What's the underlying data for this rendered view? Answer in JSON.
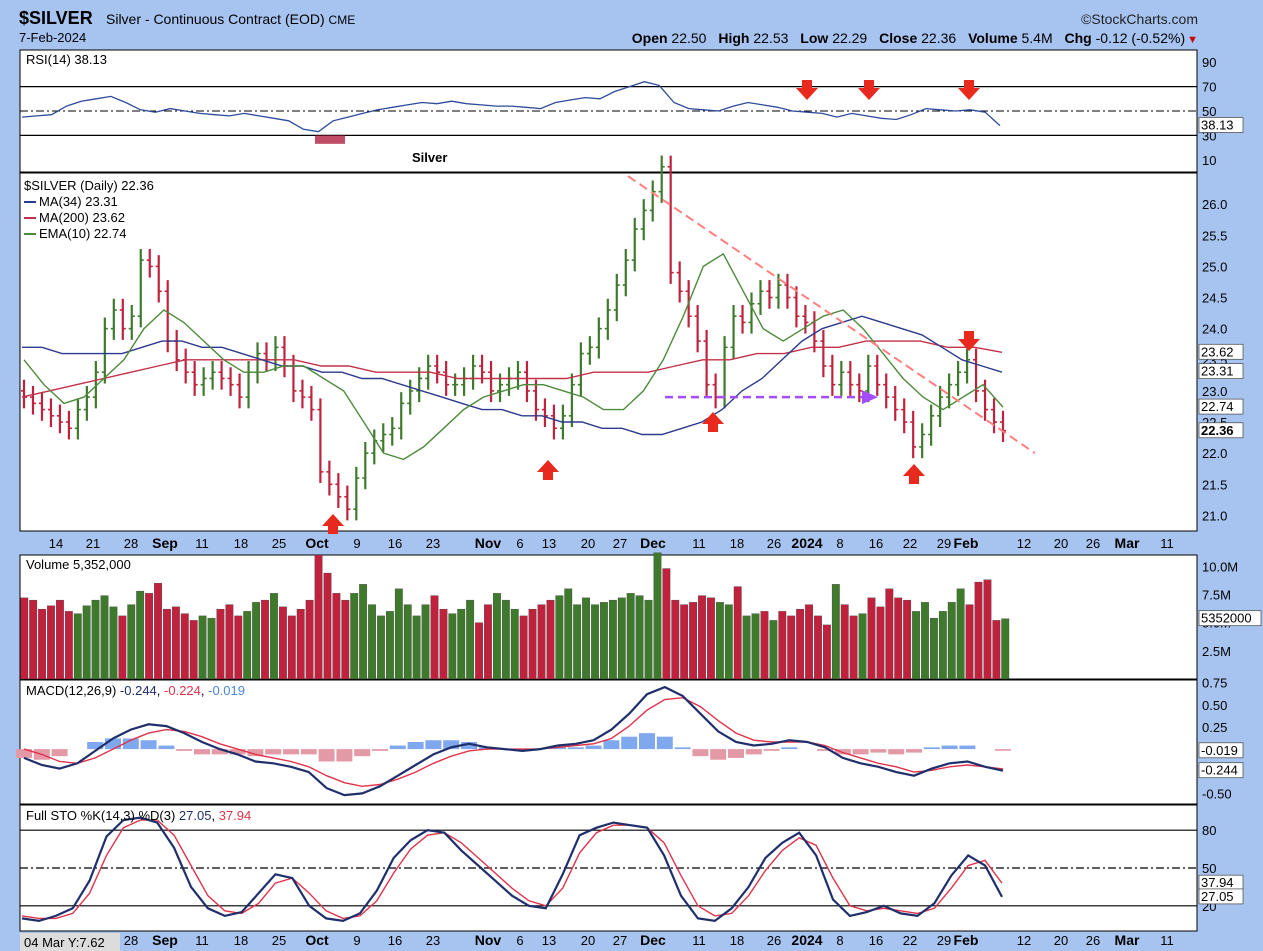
{
  "header": {
    "symbol": "$SILVER",
    "description": "Silver - Continuous Contract (EOD)",
    "exchange": "CME",
    "provider": "©StockCharts.com",
    "date": "7-Feb-2024",
    "open_label": "Open",
    "open": "22.50",
    "high_label": "High",
    "high": "22.53",
    "low_label": "Low",
    "low": "22.29",
    "close_label": "Close",
    "close": "22.36",
    "volume_label": "Volume",
    "volume": "5.4M",
    "chg_label": "Chg",
    "chg": "-0.12 (-0.52%)"
  },
  "annotation": "Silver",
  "footer_label": "04 Mar Y:7.62",
  "colors": {
    "background": "#a7c4f1",
    "panel": "#ffffff",
    "up_bar": "#3f7a2c",
    "down_bar": "#c0223e",
    "ma34": "#2b3a8c",
    "ma200": "#c4304a",
    "ema10": "#4e8a3c",
    "trendline": "#ff7f7f",
    "support_arrow": "#a34dff",
    "arrow": "#e82a1e",
    "macd_hist_pos": "#7fa8ef",
    "macd_hist_neg": "#e49aa6"
  },
  "chart_data": [
    {
      "type": "line",
      "title": "RSI(14) 38.13",
      "series": [
        {
          "name": "RSI(14)",
          "last": 38.13,
          "values": [
            45,
            46,
            47,
            54,
            58,
            60,
            62,
            57,
            51,
            49,
            52,
            50,
            48,
            47,
            46,
            48,
            46,
            44,
            42,
            35,
            33,
            42,
            45,
            48,
            51,
            53,
            55,
            57,
            56,
            58,
            56,
            55,
            54,
            54,
            53,
            52,
            57,
            59,
            61,
            60,
            66,
            70,
            74,
            71,
            57,
            52,
            51,
            50,
            54,
            57,
            55,
            53,
            50,
            49,
            48,
            45,
            48,
            46,
            44,
            43,
            47,
            52,
            51,
            50,
            51,
            49,
            38
          ]
        }
      ],
      "ylim": [
        0,
        100
      ],
      "y_ticks": [
        "90",
        "70",
        "50",
        "30",
        "10"
      ],
      "reference_lines": [
        70,
        50,
        30
      ]
    },
    {
      "type": "bar",
      "title": "$SILVER (Daily) 22.36",
      "legend": [
        "MA(34) 23.31",
        "MA(200) 23.62",
        "EMA(10) 22.74"
      ],
      "ylim": [
        20.75,
        26.5
      ],
      "y_ticks": [
        "26.0",
        "25.5",
        "25.0",
        "24.5",
        "24.0",
        "23.5",
        "23.0",
        "22.5",
        "22.0",
        "21.5",
        "21.0"
      ],
      "x_ticks": [
        "14",
        "21",
        "28",
        "Sep",
        "11",
        "18",
        "25",
        "Oct",
        "9",
        "16",
        "23",
        "Nov",
        "6",
        "13",
        "20",
        "27",
        "Dec",
        "11",
        "18",
        "26",
        "2024",
        "8",
        "16",
        "22",
        "29",
        "Feb",
        "12",
        "20",
        "26",
        "Mar",
        "11"
      ],
      "right_labels": {
        "ma200": "23.62",
        "ma34": "23.31",
        "ema10": "22.74",
        "close": "22.36"
      },
      "close": [
        22.9,
        22.8,
        22.7,
        22.6,
        22.5,
        22.4,
        22.7,
        22.9,
        23.3,
        24.0,
        24.3,
        24.0,
        24.2,
        25.1,
        25.0,
        24.6,
        23.8,
        23.5,
        23.3,
        23.1,
        23.2,
        23.3,
        23.2,
        23.1,
        22.9,
        23.3,
        23.6,
        23.5,
        23.7,
        23.4,
        23.0,
        22.9,
        22.7,
        21.7,
        21.5,
        21.3,
        21.1,
        21.6,
        22.0,
        22.2,
        22.3,
        22.4,
        22.8,
        23.0,
        23.2,
        23.4,
        23.3,
        23.1,
        23.1,
        23.2,
        23.4,
        23.3,
        23.0,
        23.1,
        23.2,
        23.3,
        23.0,
        22.7,
        22.6,
        22.4,
        22.6,
        23.1,
        23.6,
        23.7,
        24.0,
        24.3,
        24.7,
        25.1,
        25.6,
        25.9,
        26.2,
        26.6,
        24.9,
        24.6,
        24.2,
        23.8,
        23.1,
        22.9,
        23.7,
        24.2,
        24.1,
        24.4,
        24.6,
        24.5,
        24.7,
        24.5,
        24.2,
        24.1,
        23.8,
        23.4,
        23.1,
        23.3,
        23.1,
        23.0,
        23.4,
        23.1,
        22.9,
        22.7,
        22.5,
        22.1,
        22.3,
        22.6,
        22.9,
        23.1,
        23.3,
        23.5,
        23.0,
        22.7,
        22.5,
        22.36
      ],
      "ma34": [
        23.7,
        23.7,
        23.6,
        23.6,
        23.6,
        23.6,
        23.7,
        23.8,
        23.8,
        23.7,
        23.7,
        23.6,
        23.5,
        23.4,
        23.4,
        23.3,
        23.3,
        23.2,
        23.2,
        23.1,
        23.0,
        22.9,
        22.8,
        22.7,
        22.7,
        22.6,
        22.6,
        22.5,
        22.5,
        22.4,
        22.4,
        22.3,
        22.3,
        22.4,
        22.5,
        22.7,
        23.0,
        23.2,
        23.5,
        23.8,
        24.0,
        24.1,
        24.2,
        24.1,
        24.0,
        23.9,
        23.7,
        23.5,
        23.4,
        23.3
      ],
      "ma200": [
        22.9,
        23.0,
        23.1,
        23.2,
        23.3,
        23.4,
        23.5,
        23.5,
        23.5,
        23.5,
        23.5,
        23.4,
        23.4,
        23.3,
        23.3,
        23.3,
        23.2,
        23.2,
        23.2,
        23.2,
        23.2,
        23.3,
        23.3,
        23.3,
        23.4,
        23.5,
        23.5,
        23.6,
        23.6,
        23.7,
        23.7,
        23.8,
        23.8,
        23.8,
        23.7,
        23.7,
        23.62
      ],
      "ema10": [
        23.5,
        23.1,
        22.8,
        22.9,
        23.2,
        23.5,
        24.0,
        24.3,
        24.1,
        23.8,
        23.5,
        23.3,
        23.3,
        23.4,
        23.4,
        23.2,
        23.0,
        22.5,
        22.0,
        21.9,
        22.1,
        22.4,
        22.7,
        22.9,
        23.0,
        23.1,
        23.1,
        23.0,
        22.9,
        22.7,
        22.7,
        23.0,
        23.5,
        24.2,
        25.0,
        25.2,
        24.6,
        24.0,
        23.8,
        24.0,
        24.2,
        24.3,
        24.0,
        23.6,
        23.2,
        22.9,
        22.7,
        22.9,
        23.1,
        22.74
      ]
    },
    {
      "type": "bar",
      "title": "Volume 5,352,000",
      "ylim": [
        0,
        11000000
      ],
      "y_ticks": [
        "10.0M",
        "7.5M",
        "5.0M",
        "2.5M"
      ],
      "right_labels": {
        "volume": "5352000"
      },
      "values": [
        7.2,
        7.0,
        6.2,
        6.5,
        7.0,
        6.0,
        5.8,
        6.5,
        7.0,
        7.4,
        6.4,
        5.6,
        6.6,
        7.8,
        7.6,
        8.5,
        6.2,
        6.4,
        5.8,
        5.2,
        5.6,
        5.4,
        6.2,
        6.6,
        5.6,
        6.0,
        6.8,
        7.0,
        7.6,
        6.4,
        5.6,
        6.2,
        7.0,
        11.0,
        9.4,
        7.6,
        7.0,
        7.6,
        8.4,
        6.6,
        5.6,
        6.0,
        8.0,
        6.6,
        5.6,
        6.6,
        7.4,
        6.2,
        5.8,
        6.2,
        7.0,
        5.0,
        6.6,
        7.6,
        7.0,
        6.2,
        5.6,
        6.2,
        6.6,
        7.0,
        7.4,
        8.0,
        6.6,
        7.2,
        6.6,
        6.8,
        7.0,
        7.2,
        7.6,
        7.4,
        7.0,
        11.2,
        9.8,
        7.0,
        6.6,
        6.8,
        7.4,
        7.2,
        6.8,
        6.6,
        8.2,
        5.6,
        5.8,
        6.0,
        5.2,
        6.0,
        5.6,
        6.2,
        6.6,
        5.6,
        4.8,
        8.4,
        6.6,
        5.6,
        5.8,
        7.2,
        6.4,
        8.0,
        7.2,
        7.0,
        6.0,
        6.8,
        5.4,
        6.0,
        6.8,
        8.0,
        6.6,
        8.6,
        8.8,
        5.2,
        5.35
      ]
    },
    {
      "type": "line",
      "title": "MACD(12,26,9) -0.244, -0.224, -0.019",
      "ylim": [
        -0.62,
        0.78
      ],
      "y_ticks": [
        "0.75",
        "0.50",
        "0.25",
        "0.00",
        "-0.25",
        "-0.50"
      ],
      "right_labels": {
        "histogram": "-0.019",
        "macd": "-0.244"
      },
      "series": [
        {
          "name": "MACD",
          "values": [
            -0.1,
            -0.18,
            -0.22,
            -0.16,
            -0.02,
            0.12,
            0.22,
            0.28,
            0.26,
            0.18,
            0.08,
            0.0,
            -0.06,
            -0.14,
            -0.16,
            -0.2,
            -0.26,
            -0.44,
            -0.52,
            -0.5,
            -0.42,
            -0.3,
            -0.18,
            -0.06,
            0.02,
            0.06,
            0.02,
            0.0,
            -0.02,
            0.0,
            0.04,
            0.06,
            0.1,
            0.22,
            0.4,
            0.62,
            0.7,
            0.6,
            0.4,
            0.2,
            0.08,
            0.04,
            0.06,
            0.1,
            0.08,
            0.02,
            -0.1,
            -0.16,
            -0.2,
            -0.26,
            -0.3,
            -0.22,
            -0.16,
            -0.14,
            -0.2,
            -0.244
          ]
        },
        {
          "name": "Signal",
          "values": [
            0.0,
            -0.06,
            -0.14,
            -0.16,
            -0.1,
            0.0,
            0.1,
            0.18,
            0.22,
            0.2,
            0.14,
            0.06,
            0.0,
            -0.06,
            -0.1,
            -0.14,
            -0.2,
            -0.3,
            -0.38,
            -0.42,
            -0.4,
            -0.34,
            -0.26,
            -0.16,
            -0.08,
            -0.02,
            0.0,
            0.0,
            0.0,
            0.0,
            0.02,
            0.04,
            0.06,
            0.12,
            0.26,
            0.44,
            0.56,
            0.58,
            0.48,
            0.32,
            0.18,
            0.1,
            0.08,
            0.08,
            0.08,
            0.04,
            -0.04,
            -0.1,
            -0.16,
            -0.2,
            -0.26,
            -0.24,
            -0.2,
            -0.18,
            -0.2,
            -0.224
          ]
        },
        {
          "name": "Histogram",
          "values": [
            -0.1,
            -0.12,
            -0.08,
            0.0,
            0.08,
            0.12,
            0.12,
            0.1,
            0.04,
            -0.02,
            -0.06,
            -0.06,
            -0.06,
            -0.08,
            -0.06,
            -0.06,
            -0.06,
            -0.14,
            -0.14,
            -0.08,
            -0.02,
            0.04,
            0.08,
            0.1,
            0.1,
            0.08,
            0.02,
            0.0,
            -0.02,
            0.0,
            0.02,
            0.02,
            0.04,
            0.1,
            0.14,
            0.18,
            0.14,
            0.02,
            -0.08,
            -0.12,
            -0.1,
            -0.06,
            -0.02,
            0.02,
            0.0,
            -0.02,
            -0.06,
            -0.06,
            -0.04,
            -0.06,
            -0.04,
            0.02,
            0.04,
            0.04,
            0.0,
            -0.019
          ]
        }
      ]
    },
    {
      "type": "line",
      "title": "Full STO %K(14,3) %D(3) 27.05, 37.94",
      "ylim": [
        0,
        100
      ],
      "y_ticks": [
        "80",
        "50",
        "20"
      ],
      "reference_lines": [
        80,
        50,
        20
      ],
      "x_ticks": [
        "28",
        "Sep",
        "11",
        "18",
        "25",
        "Oct",
        "9",
        "16",
        "23",
        "Nov",
        "6",
        "13",
        "20",
        "27",
        "Dec",
        "11",
        "18",
        "26",
        "2024",
        "8",
        "16",
        "22",
        "29",
        "Feb",
        "12",
        "20",
        "26",
        "Mar",
        "11"
      ],
      "right_labels": {
        "d": "37.94",
        "k": "27.05"
      },
      "series": [
        {
          "name": "%K",
          "values": [
            10,
            8,
            12,
            18,
            40,
            75,
            88,
            90,
            86,
            66,
            35,
            18,
            12,
            15,
            30,
            45,
            42,
            20,
            10,
            8,
            14,
            32,
            58,
            72,
            80,
            78,
            64,
            52,
            40,
            28,
            20,
            18,
            45,
            76,
            82,
            86,
            84,
            82,
            60,
            28,
            10,
            8,
            18,
            35,
            58,
            70,
            78,
            60,
            25,
            12,
            15,
            20,
            14,
            12,
            22,
            44,
            60,
            52,
            27.05
          ]
        },
        {
          "name": "%D",
          "values": [
            12,
            10,
            10,
            14,
            30,
            60,
            82,
            88,
            88,
            76,
            52,
            28,
            16,
            14,
            22,
            38,
            42,
            30,
            16,
            10,
            12,
            24,
            46,
            65,
            76,
            78,
            70,
            58,
            46,
            34,
            24,
            20,
            34,
            62,
            78,
            84,
            84,
            82,
            70,
            44,
            20,
            12,
            14,
            28,
            48,
            64,
            74,
            68,
            42,
            20,
            16,
            18,
            16,
            14,
            18,
            34,
            52,
            56,
            37.94
          ]
        }
      ]
    }
  ],
  "annotations": {
    "rsi_arrows": [
      "down",
      "down",
      "down"
    ],
    "price_up_arrows": [
      "up",
      "up",
      "up",
      "up"
    ],
    "price_down_arrow": "down"
  }
}
